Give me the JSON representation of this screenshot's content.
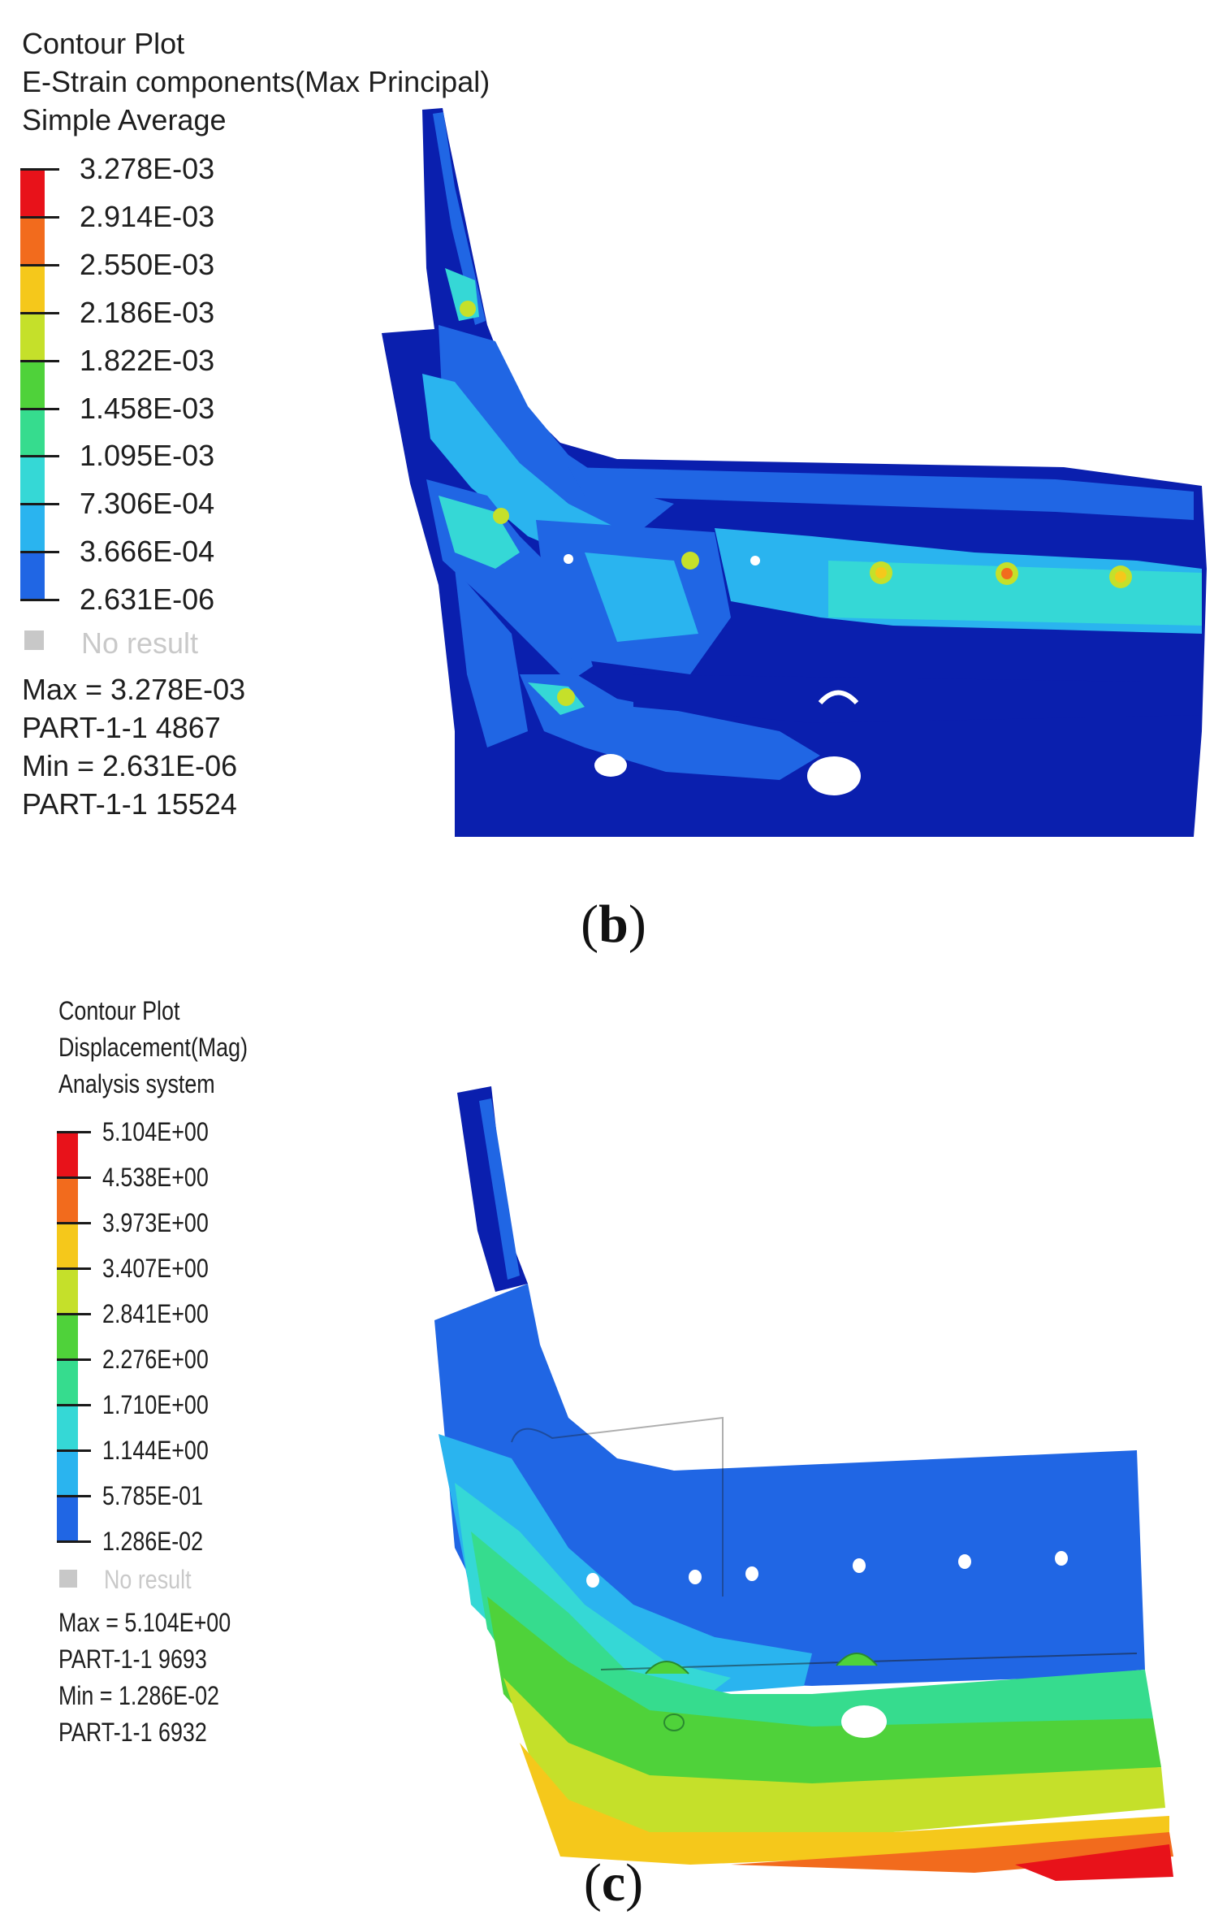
{
  "panel_b": {
    "header": [
      "Contour Plot",
      "E-Strain components(Max Principal)",
      "Simple Average"
    ],
    "legend": {
      "labels": [
        "3.278E-03",
        "2.914E-03",
        "2.550E-03",
        "2.186E-03",
        "1.822E-03",
        "1.458E-03",
        "1.095E-03",
        "7.306E-04",
        "3.666E-04",
        "2.631E-06"
      ],
      "colors": [
        "#e8121a",
        "#f26b1d",
        "#f5c81b",
        "#c5e02a",
        "#4fd23a",
        "#36dc8e",
        "#35d8d6",
        "#2ab4ef",
        "#2066e4",
        "#0a1fae"
      ]
    },
    "no_result": "No result",
    "stats": [
      "Max = 3.278E-03",
      "PART-1-1 4867",
      "Min = 2.631E-06",
      "PART-1-1 15524"
    ],
    "caption_open": "(",
    "caption_letter": "b",
    "caption_close": ")"
  },
  "panel_c": {
    "header": [
      "Contour Plot",
      "Displacement(Mag)",
      "Analysis system"
    ],
    "legend": {
      "labels": [
        "5.104E+00",
        "4.538E+00",
        "3.973E+00",
        "3.407E+00",
        "2.841E+00",
        "2.276E+00",
        "1.710E+00",
        "1.144E+00",
        "5.785E-01",
        "1.286E-02"
      ],
      "colors": [
        "#e8121a",
        "#f26b1d",
        "#f5c81b",
        "#c5e02a",
        "#4fd23a",
        "#36dc8e",
        "#35d8d6",
        "#2ab4ef",
        "#2066e4",
        "#0a1fae"
      ]
    },
    "no_result": "No result",
    "stats": [
      "Max = 5.104E+00",
      "PART-1-1 9693",
      "Min = 1.286E-02",
      "PART-1-1 6932"
    ],
    "caption_open": "(",
    "caption_letter": "c",
    "caption_close": ")"
  }
}
